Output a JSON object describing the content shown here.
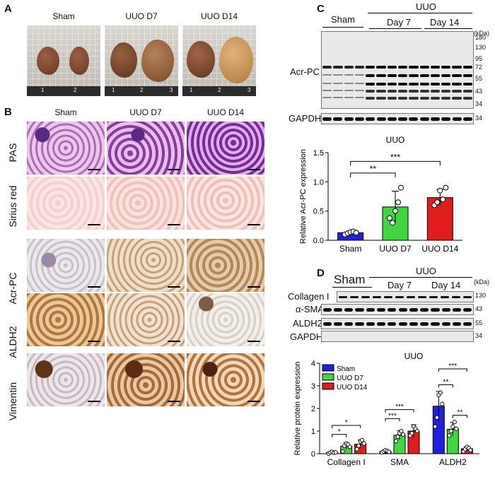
{
  "panels": {
    "A": "A",
    "B": "B",
    "C": "C",
    "D": "D"
  },
  "panelA": {
    "groups": [
      "Sham",
      "UUO D7",
      "UUO D14"
    ],
    "ruler_ticks": [
      [
        "1",
        "2"
      ],
      [
        "1",
        "2",
        "3"
      ],
      [
        "1",
        "2",
        "3"
      ]
    ]
  },
  "panelB": {
    "columns": [
      "Sham",
      "UUO D7",
      "UUO D14"
    ],
    "rows": [
      "PAS",
      "Sirius red",
      "Acr-PC",
      "ALDH2",
      "Vimentin"
    ]
  },
  "panelC": {
    "group_sham": "Sham",
    "group_uuo": "UUO",
    "day7": "Day 7",
    "day14": "Day 14",
    "kda": "(kDa)",
    "markers": [
      "180",
      "130",
      "95",
      "72",
      "55",
      "43",
      "34"
    ],
    "blot_label": "Acr-PC",
    "gapdh_label": "GAPDH",
    "gapdh_marker": "34"
  },
  "panelD": {
    "group_sham": "Sham",
    "group_uuo": "UUO",
    "day7": "Day 7",
    "day14": "Day 14",
    "kda": "(kDa)",
    "rows": [
      {
        "label": "Collagen I",
        "marker": "130"
      },
      {
        "label": "α-SMA",
        "marker": "43"
      },
      {
        "label": "ALDH2",
        "marker": "55"
      },
      {
        "label": "GAPDH",
        "marker": "34"
      }
    ]
  },
  "chart_data": [
    {
      "type": "bar",
      "title": "UUO",
      "ylabel": "Relative Acr-PC expression",
      "categories": [
        "Sham",
        "UUO D7",
        "UUO D14"
      ],
      "values": [
        0.13,
        0.57,
        0.73
      ],
      "errors": [
        0.03,
        0.27,
        0.14
      ],
      "points": [
        [
          0.1,
          0.12,
          0.14,
          0.15,
          0.13
        ],
        [
          0.38,
          0.3,
          0.5,
          0.65,
          0.9
        ],
        [
          0.6,
          0.65,
          0.85,
          0.7,
          0.9
        ]
      ],
      "colors": [
        "#1f1fe6",
        "#3fd63f",
        "#e01c1c"
      ],
      "ylim": [
        0,
        1.5
      ],
      "yticks": [
        "0.0",
        "0.5",
        "1.0",
        "1.5"
      ],
      "significance": [
        "**",
        "***"
      ]
    },
    {
      "type": "bar",
      "title": "UUO",
      "ylabel": "Relative protein expression",
      "categories": [
        "Collagen I",
        "SMA",
        "ALDH2"
      ],
      "series": [
        {
          "name": "Sham",
          "values": [
            0.05,
            0.1,
            2.1
          ],
          "errors": [
            0.03,
            0.05,
            0.65
          ],
          "color": "#1f1fe6"
        },
        {
          "name": "UUO D7",
          "values": [
            0.33,
            0.82,
            1.08
          ],
          "errors": [
            0.15,
            0.2,
            0.3
          ],
          "color": "#3fd63f"
        },
        {
          "name": "UUO D14",
          "values": [
            0.42,
            1.0,
            0.22
          ],
          "errors": [
            0.18,
            0.28,
            0.1
          ],
          "color": "#e01c1c"
        }
      ],
      "points": [
        [
          [
            0.0,
            0.05,
            0.08,
            0.04,
            0.06
          ],
          [
            0.1,
            0.35,
            0.45,
            0.4,
            0.3
          ],
          [
            0.2,
            0.35,
            0.55,
            0.6,
            0.45
          ]
        ],
        [
          [
            0.05,
            0.1,
            0.15,
            0.12,
            0.08
          ],
          [
            0.55,
            0.75,
            0.9,
            1.0,
            0.85
          ],
          [
            0.8,
            0.9,
            1.2,
            1.1,
            1.0
          ]
        ],
        [
          [
            1.2,
            1.6,
            2.6,
            2.7,
            2.2
          ],
          [
            0.8,
            1.0,
            1.2,
            1.4,
            1.1
          ],
          [
            0.1,
            0.2,
            0.3,
            0.25,
            0.15
          ]
        ]
      ],
      "ylim": [
        0,
        4
      ],
      "yticks": [
        "0",
        "1",
        "2",
        "3",
        "4"
      ],
      "legend": "top-left",
      "significance": [
        "*",
        "*",
        "***",
        "***",
        "**",
        "**"
      ]
    }
  ]
}
